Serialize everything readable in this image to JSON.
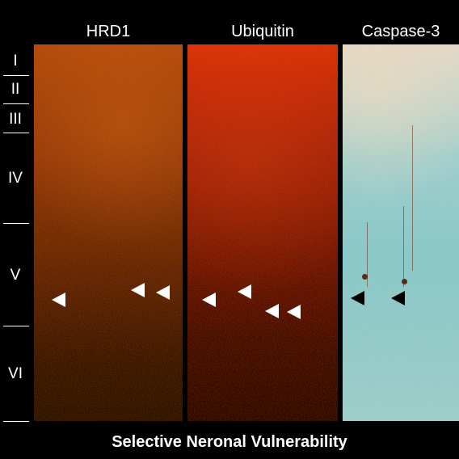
{
  "column_labels": [
    "HRD1",
    "Ubiquitin",
    "Caspase-3"
  ],
  "layer_labels": [
    "I",
    "II",
    "III",
    "IV",
    "V",
    "VI"
  ],
  "caption": "Selective Neronal Vulnerability",
  "colors": {
    "background": "#000000",
    "text": "#ffffff",
    "hrd1_stain": "#a13a0c",
    "ubiquitin_stain": "#c8280a",
    "caspase_counterstain": "#85c9c8",
    "marker_white": "#ffffff",
    "marker_black": "#000000"
  },
  "markers": {
    "hrd1": "white-arrowhead",
    "ubiquitin": "white-arrowhead",
    "caspase3": "black-arrowhead"
  }
}
